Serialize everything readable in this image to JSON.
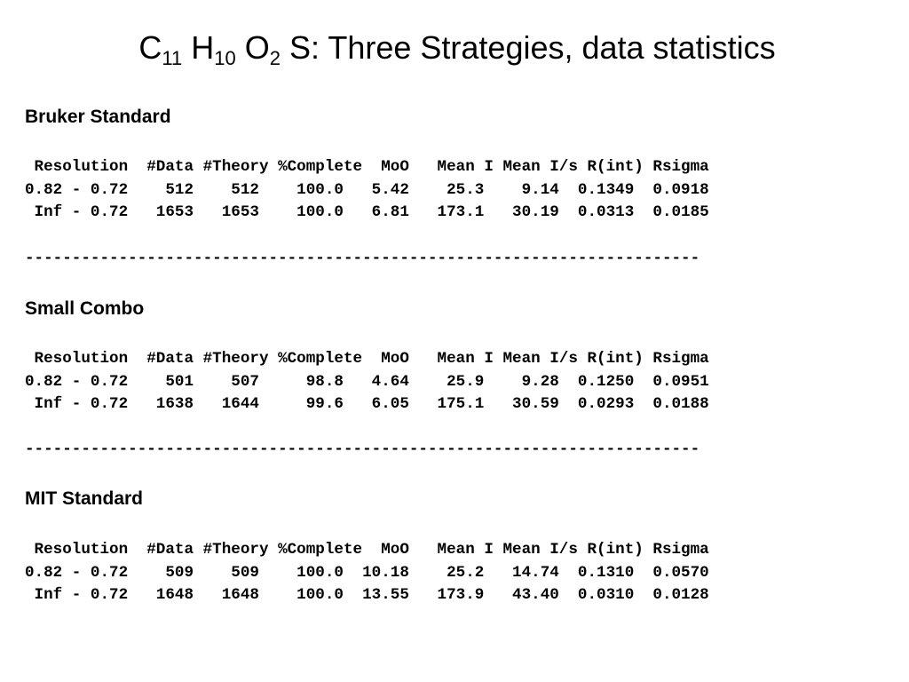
{
  "title": {
    "parts": [
      "C",
      "11",
      " H",
      "10",
      " O",
      "2",
      " S: Three Strategies, data statistics"
    ]
  },
  "header_line": " Resolution  #Data #Theory %Complete  MoO   Mean I Mean I/s R(int) Rsigma",
  "divider": "------------------------------------------------------------------------",
  "sections": [
    {
      "name": "Bruker Standard",
      "rows": [
        "0.82 - 0.72    512    512    100.0   5.42    25.3    9.14  0.1349  0.0918",
        " Inf - 0.72   1653   1653    100.0   6.81   173.1   30.19  0.0313  0.0185"
      ]
    },
    {
      "name": "Small Combo",
      "rows": [
        "0.82 - 0.72    501    507     98.8   4.64    25.9    9.28  0.1250  0.0951",
        " Inf - 0.72   1638   1644     99.6   6.05   175.1   30.59  0.0293  0.0188"
      ]
    },
    {
      "name": "MIT Standard",
      "rows": [
        "0.82 - 0.72    509    509    100.0  10.18    25.2   14.74  0.1310  0.0570",
        " Inf - 0.72   1648   1648    100.0  13.55   173.9   43.40  0.0310  0.0128"
      ]
    }
  ]
}
